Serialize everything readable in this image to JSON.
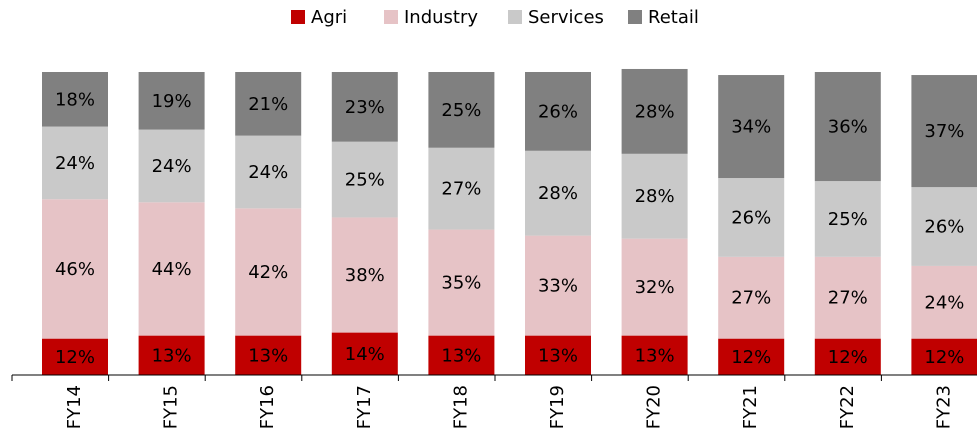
{
  "chart_data": {
    "type": "bar",
    "stacked": true,
    "categories": [
      "FY14",
      "FY15",
      "FY16",
      "FY17",
      "FY18",
      "FY19",
      "FY20",
      "FY21",
      "FY22",
      "FY23"
    ],
    "ylim": [
      0,
      100
    ],
    "legend": "top",
    "series": [
      {
        "name": "Agri",
        "color": "#c00000",
        "values": [
          12,
          13,
          13,
          14,
          13,
          13,
          13,
          12,
          12,
          12
        ],
        "value_labels": [
          "12%",
          "13%",
          "13%",
          "14%",
          "13%",
          "13%",
          "13%",
          "12%",
          "12%",
          "12%"
        ]
      },
      {
        "name": "Industry",
        "color": "#e6c3c6",
        "values": [
          46,
          44,
          42,
          38,
          35,
          33,
          32,
          27,
          27,
          24
        ],
        "value_labels": [
          "46%",
          "44%",
          "42%",
          "38%",
          "35%",
          "33%",
          "32%",
          "27%",
          "27%",
          "24%"
        ]
      },
      {
        "name": "Services",
        "color": "#c9c9c9",
        "values": [
          24,
          24,
          24,
          25,
          27,
          28,
          28,
          26,
          25,
          26
        ],
        "value_labels": [
          "24%",
          "24%",
          "24%",
          "25%",
          "27%",
          "28%",
          "28%",
          "26%",
          "25%",
          "26%"
        ]
      },
      {
        "name": "Retail",
        "color": "#808080",
        "values": [
          18,
          19,
          21,
          23,
          25,
          26,
          28,
          34,
          36,
          37
        ],
        "value_labels": [
          "18%",
          "19%",
          "21%",
          "23%",
          "25%",
          "26%",
          "28%",
          "34%",
          "36%",
          "37%"
        ]
      }
    ]
  }
}
